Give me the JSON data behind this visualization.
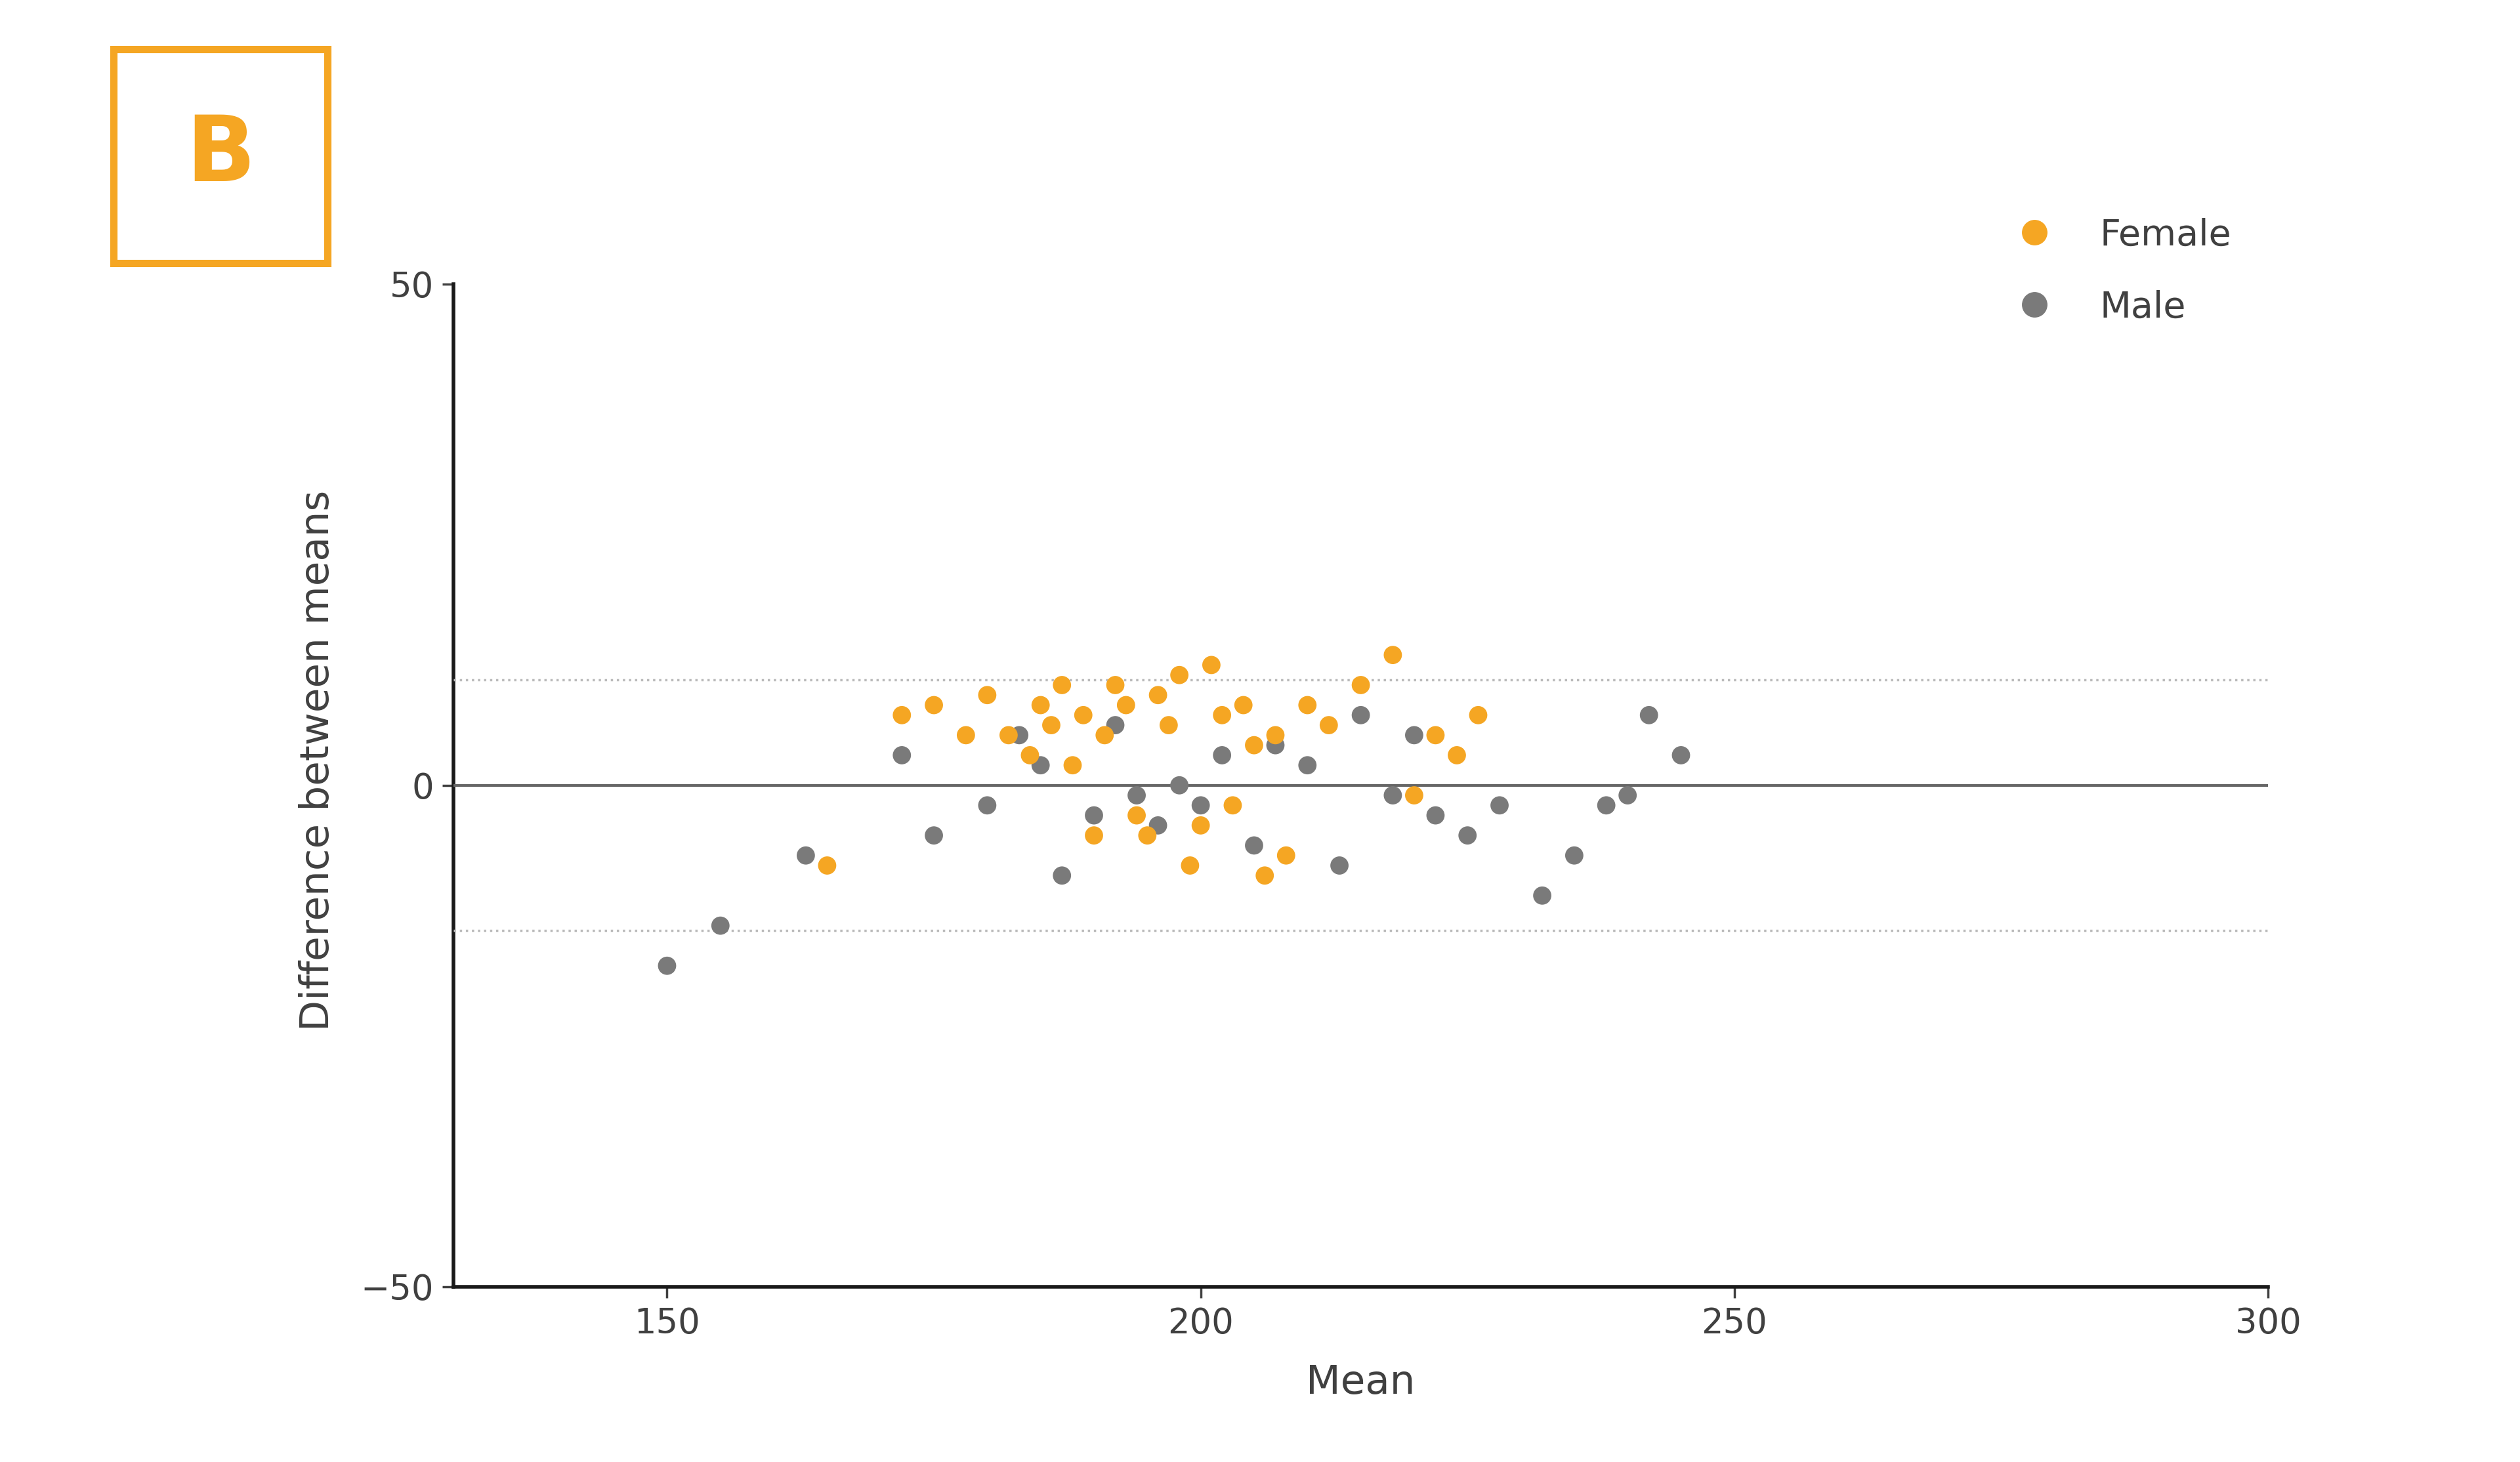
{
  "female_x": [
    165,
    172,
    175,
    178,
    180,
    182,
    184,
    185,
    186,
    187,
    188,
    189,
    190,
    191,
    192,
    193,
    194,
    195,
    196,
    197,
    198,
    199,
    200,
    201,
    202,
    203,
    204,
    205,
    206,
    207,
    208,
    210,
    212,
    215,
    218,
    220,
    222,
    224,
    226
  ],
  "female_y": [
    -8,
    7,
    8,
    5,
    9,
    5,
    3,
    8,
    6,
    10,
    2,
    7,
    -5,
    5,
    10,
    8,
    -3,
    -5,
    9,
    6,
    11,
    -8,
    -4,
    12,
    7,
    -2,
    8,
    4,
    -9,
    5,
    -7,
    8,
    6,
    10,
    13,
    -1,
    5,
    3,
    7
  ],
  "male_x": [
    150,
    155,
    163,
    172,
    175,
    180,
    183,
    185,
    187,
    190,
    192,
    194,
    196,
    198,
    200,
    202,
    205,
    207,
    210,
    213,
    215,
    218,
    220,
    222,
    225,
    228,
    232,
    235,
    238,
    240,
    242,
    245
  ],
  "male_y": [
    -18,
    -14,
    -7,
    3,
    -5,
    -2,
    5,
    2,
    -9,
    -3,
    6,
    -1,
    -4,
    0,
    -2,
    3,
    -6,
    4,
    2,
    -8,
    7,
    -1,
    5,
    -3,
    -5,
    -2,
    -11,
    -7,
    -2,
    -1,
    7,
    3
  ],
  "mean_diff": 0.0,
  "upper_loa": 10.5,
  "lower_loa": -14.5,
  "xlim": [
    130,
    300
  ],
  "ylim": [
    -50,
    55
  ],
  "xlabel": "Mean",
  "ylabel": "Difference between means",
  "female_color": "#F5A623",
  "male_color": "#7a7a7a",
  "mean_line_color": "#666666",
  "loa_line_color": "#BBBBBB",
  "bg_color": "#FFFFFF",
  "label_color": "#404040",
  "panel_label": "B",
  "panel_box_color": "#F5A623",
  "xticks": [
    150,
    200,
    250,
    300
  ],
  "yticks": [
    -50,
    0,
    50
  ],
  "marker_size": 400,
  "legend_female": "Female",
  "legend_male": "Male",
  "font_family": "sans-serif"
}
